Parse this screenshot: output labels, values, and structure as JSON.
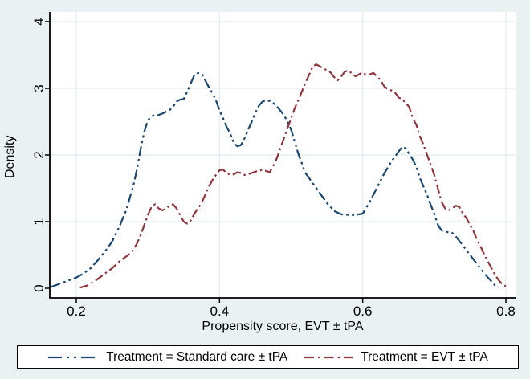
{
  "figure": {
    "background_color": "#eaf1f3",
    "plot_background_color": "#ffffff",
    "grid_color": "#e2edef",
    "axis_color": "#000000"
  },
  "chart_data": {
    "type": "line",
    "title": "",
    "xlabel": "Propensity score, EVT ± tPA",
    "ylabel": "Density",
    "xlim": [
      0.163,
      0.813
    ],
    "ylim": [
      -0.15,
      4.14
    ],
    "x_ticks": [
      0.2,
      0.4,
      0.6,
      0.8
    ],
    "y_ticks": [
      0,
      1,
      2,
      3,
      4
    ],
    "grid": true,
    "legend_position": "bottom",
    "series": [
      {
        "name": "Treatment = Standard care ± tPA",
        "color": "#1a476f",
        "dash": "dash-dot-dot",
        "points": [
          [
            0.165,
            0.02
          ],
          [
            0.175,
            0.06
          ],
          [
            0.19,
            0.12
          ],
          [
            0.2,
            0.16
          ],
          [
            0.21,
            0.22
          ],
          [
            0.22,
            0.3
          ],
          [
            0.23,
            0.42
          ],
          [
            0.24,
            0.55
          ],
          [
            0.25,
            0.7
          ],
          [
            0.26,
            0.92
          ],
          [
            0.27,
            1.18
          ],
          [
            0.28,
            1.55
          ],
          [
            0.285,
            1.8
          ],
          [
            0.29,
            2.1
          ],
          [
            0.295,
            2.35
          ],
          [
            0.3,
            2.52
          ],
          [
            0.305,
            2.58
          ],
          [
            0.31,
            2.6
          ],
          [
            0.315,
            2.6
          ],
          [
            0.32,
            2.62
          ],
          [
            0.33,
            2.67
          ],
          [
            0.335,
            2.72
          ],
          [
            0.34,
            2.8
          ],
          [
            0.345,
            2.83
          ],
          [
            0.35,
            2.84
          ],
          [
            0.355,
            2.95
          ],
          [
            0.36,
            3.08
          ],
          [
            0.365,
            3.2
          ],
          [
            0.37,
            3.23
          ],
          [
            0.375,
            3.22
          ],
          [
            0.38,
            3.12
          ],
          [
            0.385,
            3.02
          ],
          [
            0.39,
            2.93
          ],
          [
            0.395,
            2.82
          ],
          [
            0.4,
            2.67
          ],
          [
            0.405,
            2.55
          ],
          [
            0.41,
            2.42
          ],
          [
            0.415,
            2.32
          ],
          [
            0.42,
            2.18
          ],
          [
            0.425,
            2.13
          ],
          [
            0.43,
            2.15
          ],
          [
            0.435,
            2.25
          ],
          [
            0.44,
            2.38
          ],
          [
            0.445,
            2.5
          ],
          [
            0.45,
            2.63
          ],
          [
            0.455,
            2.74
          ],
          [
            0.46,
            2.8
          ],
          [
            0.465,
            2.82
          ],
          [
            0.47,
            2.81
          ],
          [
            0.475,
            2.78
          ],
          [
            0.48,
            2.73
          ],
          [
            0.49,
            2.6
          ],
          [
            0.495,
            2.5
          ],
          [
            0.5,
            2.38
          ],
          [
            0.505,
            2.2
          ],
          [
            0.51,
            2.02
          ],
          [
            0.52,
            1.73
          ],
          [
            0.53,
            1.58
          ],
          [
            0.54,
            1.43
          ],
          [
            0.55,
            1.28
          ],
          [
            0.56,
            1.16
          ],
          [
            0.57,
            1.11
          ],
          [
            0.58,
            1.1
          ],
          [
            0.59,
            1.1
          ],
          [
            0.6,
            1.12
          ],
          [
            0.61,
            1.3
          ],
          [
            0.62,
            1.51
          ],
          [
            0.63,
            1.72
          ],
          [
            0.64,
            1.9
          ],
          [
            0.65,
            2.05
          ],
          [
            0.655,
            2.12
          ],
          [
            0.66,
            2.1
          ],
          [
            0.67,
            1.93
          ],
          [
            0.675,
            1.82
          ],
          [
            0.68,
            1.65
          ],
          [
            0.69,
            1.4
          ],
          [
            0.695,
            1.25
          ],
          [
            0.7,
            1.12
          ],
          [
            0.705,
            0.95
          ],
          [
            0.71,
            0.87
          ],
          [
            0.715,
            0.85
          ],
          [
            0.72,
            0.84
          ],
          [
            0.725,
            0.83
          ],
          [
            0.73,
            0.78
          ],
          [
            0.74,
            0.64
          ],
          [
            0.75,
            0.5
          ],
          [
            0.76,
            0.36
          ],
          [
            0.77,
            0.22
          ],
          [
            0.78,
            0.1
          ],
          [
            0.785,
            0.04
          ],
          [
            0.79,
            0.02
          ]
        ]
      },
      {
        "name": "Treatment = EVT ± tPA",
        "color": "#90353b",
        "dash": "dash-dot",
        "points": [
          [
            0.205,
            0.01
          ],
          [
            0.215,
            0.04
          ],
          [
            0.225,
            0.1
          ],
          [
            0.235,
            0.18
          ],
          [
            0.245,
            0.26
          ],
          [
            0.25,
            0.3
          ],
          [
            0.26,
            0.4
          ],
          [
            0.27,
            0.48
          ],
          [
            0.275,
            0.52
          ],
          [
            0.28,
            0.58
          ],
          [
            0.285,
            0.68
          ],
          [
            0.29,
            0.8
          ],
          [
            0.295,
            0.95
          ],
          [
            0.3,
            1.1
          ],
          [
            0.305,
            1.22
          ],
          [
            0.31,
            1.26
          ],
          [
            0.315,
            1.2
          ],
          [
            0.32,
            1.17
          ],
          [
            0.325,
            1.19
          ],
          [
            0.33,
            1.24
          ],
          [
            0.335,
            1.26
          ],
          [
            0.34,
            1.2
          ],
          [
            0.345,
            1.1
          ],
          [
            0.35,
            1.0
          ],
          [
            0.355,
            0.97
          ],
          [
            0.36,
            1.02
          ],
          [
            0.365,
            1.12
          ],
          [
            0.37,
            1.2
          ],
          [
            0.375,
            1.28
          ],
          [
            0.38,
            1.4
          ],
          [
            0.385,
            1.52
          ],
          [
            0.39,
            1.62
          ],
          [
            0.395,
            1.7
          ],
          [
            0.4,
            1.77
          ],
          [
            0.405,
            1.78
          ],
          [
            0.41,
            1.73
          ],
          [
            0.415,
            1.7
          ],
          [
            0.42,
            1.71
          ],
          [
            0.425,
            1.74
          ],
          [
            0.43,
            1.73
          ],
          [
            0.435,
            1.7
          ],
          [
            0.44,
            1.71
          ],
          [
            0.445,
            1.73
          ],
          [
            0.45,
            1.75
          ],
          [
            0.455,
            1.76
          ],
          [
            0.46,
            1.78
          ],
          [
            0.465,
            1.76
          ],
          [
            0.47,
            1.74
          ],
          [
            0.475,
            1.83
          ],
          [
            0.48,
            1.95
          ],
          [
            0.485,
            2.1
          ],
          [
            0.49,
            2.25
          ],
          [
            0.495,
            2.4
          ],
          [
            0.5,
            2.55
          ],
          [
            0.505,
            2.7
          ],
          [
            0.51,
            2.82
          ],
          [
            0.515,
            2.95
          ],
          [
            0.52,
            3.08
          ],
          [
            0.525,
            3.2
          ],
          [
            0.53,
            3.32
          ],
          [
            0.535,
            3.36
          ],
          [
            0.54,
            3.33
          ],
          [
            0.545,
            3.3
          ],
          [
            0.55,
            3.27
          ],
          [
            0.555,
            3.24
          ],
          [
            0.56,
            3.17
          ],
          [
            0.565,
            3.12
          ],
          [
            0.57,
            3.18
          ],
          [
            0.575,
            3.25
          ],
          [
            0.58,
            3.27
          ],
          [
            0.585,
            3.22
          ],
          [
            0.59,
            3.18
          ],
          [
            0.595,
            3.21
          ],
          [
            0.6,
            3.24
          ],
          [
            0.605,
            3.2
          ],
          [
            0.61,
            3.21
          ],
          [
            0.615,
            3.23
          ],
          [
            0.62,
            3.18
          ],
          [
            0.625,
            3.12
          ],
          [
            0.63,
            3.03
          ],
          [
            0.635,
            2.99
          ],
          [
            0.64,
            2.97
          ],
          [
            0.645,
            2.94
          ],
          [
            0.65,
            2.86
          ],
          [
            0.655,
            2.84
          ],
          [
            0.66,
            2.78
          ],
          [
            0.665,
            2.72
          ],
          [
            0.67,
            2.55
          ],
          [
            0.675,
            2.45
          ],
          [
            0.68,
            2.28
          ],
          [
            0.685,
            2.15
          ],
          [
            0.69,
            2.0
          ],
          [
            0.695,
            1.85
          ],
          [
            0.7,
            1.7
          ],
          [
            0.705,
            1.5
          ],
          [
            0.71,
            1.3
          ],
          [
            0.715,
            1.2
          ],
          [
            0.72,
            1.17
          ],
          [
            0.725,
            1.2
          ],
          [
            0.73,
            1.24
          ],
          [
            0.735,
            1.22
          ],
          [
            0.74,
            1.12
          ],
          [
            0.745,
            1.05
          ],
          [
            0.75,
            0.95
          ],
          [
            0.755,
            0.85
          ],
          [
            0.76,
            0.72
          ],
          [
            0.765,
            0.62
          ],
          [
            0.77,
            0.5
          ],
          [
            0.775,
            0.4
          ],
          [
            0.78,
            0.3
          ],
          [
            0.785,
            0.2
          ],
          [
            0.79,
            0.12
          ],
          [
            0.795,
            0.06
          ],
          [
            0.8,
            0.03
          ]
        ]
      }
    ]
  },
  "legend": {
    "items": [
      {
        "label": "Treatment = Standard care ± tPA"
      },
      {
        "label": "Treatment = EVT ± tPA"
      }
    ]
  }
}
